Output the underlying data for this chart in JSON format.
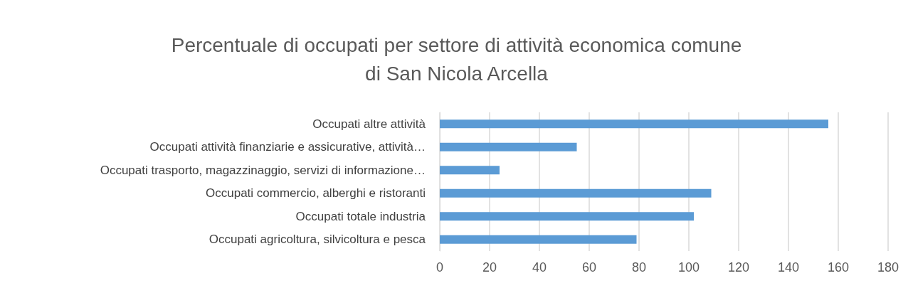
{
  "chart_data": {
    "type": "bar",
    "orientation": "horizontal",
    "title": "Percentuale di occupati per settore di attività economica comune\ndi San Nicola Arcella",
    "categories": [
      "Occupati altre attività",
      "Occupati attività finanziarie e assicurative, attività…",
      "Occupati trasporto, magazzinaggio, servizi di informazione…",
      "Occupati commercio, alberghi e ristoranti",
      "Occupati totale industria",
      "Occupati agricoltura, silvicoltura e pesca"
    ],
    "values": [
      156,
      55,
      24,
      109,
      102,
      79
    ],
    "color": "#5b9bd5",
    "xlim": [
      0,
      180
    ],
    "xticks": [
      0,
      20,
      40,
      60,
      80,
      100,
      120,
      140,
      160,
      180
    ],
    "grid": "x"
  }
}
